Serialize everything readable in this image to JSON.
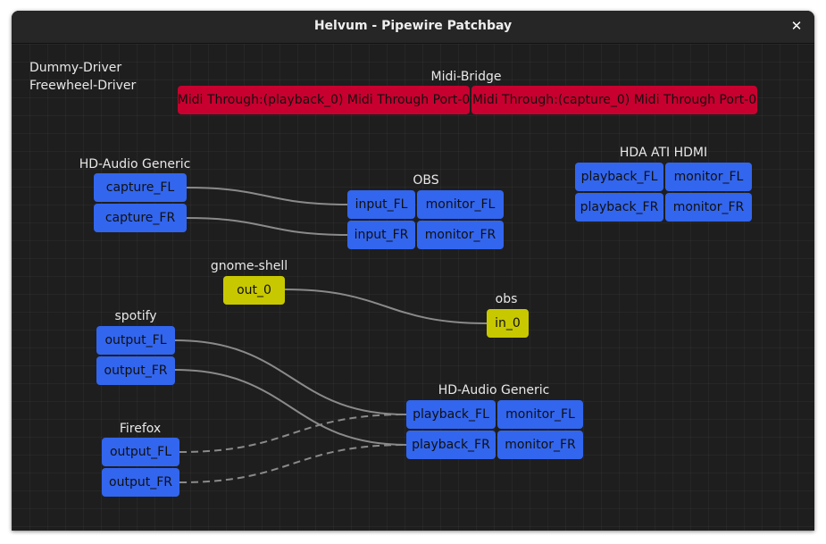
{
  "window": {
    "title": "Helvum - Pipewire Patchbay",
    "close_icon": "close-icon"
  },
  "colors": {
    "audio_port": "#3366ee",
    "midi_port": "#c8002f",
    "video_port": "#c8c800",
    "link": "#8a8a8a",
    "background": "#1e1e1e"
  },
  "standalone": [
    "Dummy-Driver",
    "Freewheel-Driver"
  ],
  "nodes": {
    "midi_bridge": {
      "name": "Midi-Bridge",
      "ports": [
        "Midi Through:(playback_0) Midi Through Port-0",
        "Midi Through:(capture_0) Midi Through Port-0"
      ]
    },
    "hda_ati_hdmi": {
      "name": "HDA ATI HDMI",
      "ports": [
        "playback_FL",
        "monitor_FL",
        "playback_FR",
        "monitor_FR"
      ]
    },
    "hd_audio_in": {
      "name": "HD-Audio Generic",
      "ports": [
        "capture_FL",
        "capture_FR"
      ]
    },
    "obs": {
      "name": "OBS",
      "ports": [
        "input_FL",
        "monitor_FL",
        "input_FR",
        "monitor_FR"
      ]
    },
    "gnome_shell": {
      "name": "gnome-shell",
      "ports": [
        "out_0"
      ]
    },
    "obs_video": {
      "name": "obs",
      "ports": [
        "in_0"
      ]
    },
    "spotify": {
      "name": "spotify",
      "ports": [
        "output_FL",
        "output_FR"
      ]
    },
    "hd_audio_out": {
      "name": "HD-Audio Generic",
      "ports": [
        "playback_FL",
        "monitor_FL",
        "playback_FR",
        "monitor_FR"
      ]
    },
    "firefox": {
      "name": "Firefox",
      "ports": [
        "output_FL",
        "output_FR"
      ]
    }
  },
  "links": [
    {
      "from": "HD-Audio Generic:capture_FL",
      "to": "OBS:input_FL",
      "active": true
    },
    {
      "from": "HD-Audio Generic:capture_FR",
      "to": "OBS:input_FR",
      "active": true
    },
    {
      "from": "gnome-shell:out_0",
      "to": "obs:in_0",
      "active": true
    },
    {
      "from": "spotify:output_FL",
      "to": "HD-Audio Generic:playback_FL",
      "active": true
    },
    {
      "from": "spotify:output_FR",
      "to": "HD-Audio Generic:playback_FR",
      "active": true
    },
    {
      "from": "Firefox:output_FL",
      "to": "HD-Audio Generic:playback_FL",
      "active": false
    },
    {
      "from": "Firefox:output_FR",
      "to": "HD-Audio Generic:playback_FR",
      "active": false
    }
  ]
}
